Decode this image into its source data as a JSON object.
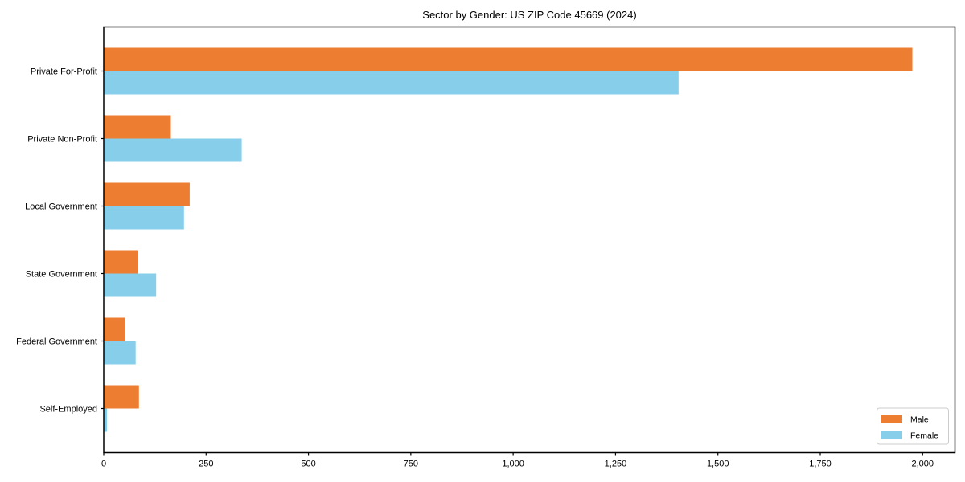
{
  "chart_data": {
    "type": "bar",
    "orientation": "horizontal",
    "title": "Sector by Gender: US ZIP Code 45669 (2024)",
    "categories": [
      "Private For-Profit",
      "Private Non-Profit",
      "Local Government",
      "State Government",
      "Federal Government",
      "Self-Employed"
    ],
    "series": [
      {
        "name": "Male",
        "color": "#ED7D31",
        "values": [
          1975,
          164,
          210,
          83,
          52,
          86
        ]
      },
      {
        "name": "Female",
        "color": "#87CEEB",
        "values": [
          1404,
          337,
          196,
          128,
          78,
          8
        ]
      }
    ],
    "xlabel": "",
    "ylabel": "",
    "xlim": [
      0,
      2079
    ],
    "x_tick_values": [
      0,
      250,
      500,
      750,
      1000,
      1250,
      1500,
      1750,
      2000
    ],
    "x_tick_labels": [
      "0",
      "250",
      "500",
      "750",
      "1,000",
      "1,250",
      "1,500",
      "1,750",
      "2,000"
    ],
    "grid": false,
    "legend_position": "lower right"
  },
  "colors": {
    "spine": "#000000",
    "legend_border": "#CCCCCC",
    "background": "#FFFFFF",
    "text": "#000000"
  }
}
